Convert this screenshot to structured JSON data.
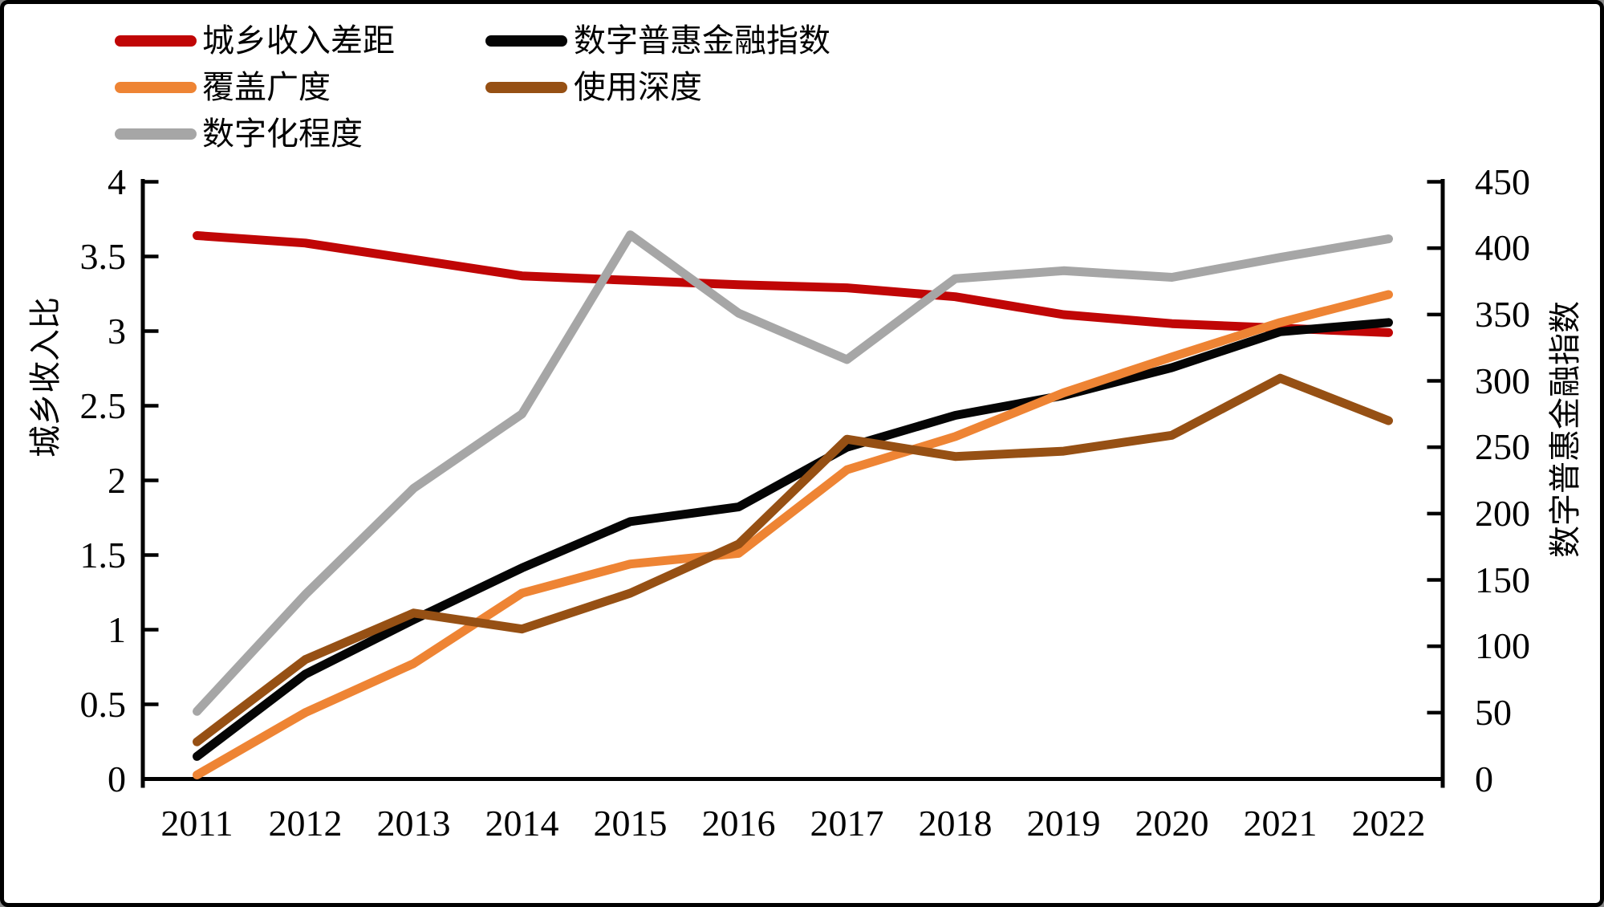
{
  "chart_data": {
    "type": "line",
    "title": "",
    "x_years": [
      "2011",
      "2012",
      "2013",
      "2014",
      "2015",
      "2016",
      "2017",
      "2018",
      "2019",
      "2020",
      "2021",
      "2022"
    ],
    "ylabel_left": "城乡收入比",
    "ylabel_right": "数字普惠金融指数",
    "yaxis_left": {
      "min": 0,
      "max": 4,
      "step": 0.5,
      "tick_labels": [
        "0",
        "0.5",
        "1",
        "1.5",
        "2",
        "2.5",
        "3",
        "3.5",
        "4"
      ]
    },
    "yaxis_right": {
      "min": 0,
      "max": 450,
      "step": 50,
      "tick_labels": [
        "0",
        "50",
        "100",
        "150",
        "200",
        "250",
        "300",
        "350",
        "400",
        "450"
      ]
    },
    "grid": false,
    "legend_position": "top-left",
    "series": [
      {
        "key": "urban-rural-income-gap",
        "name": "城乡收入差距",
        "axis": "left",
        "color": "#C00606",
        "values": [
          3.64,
          3.59,
          3.48,
          3.37,
          3.34,
          3.31,
          3.29,
          3.23,
          3.11,
          3.05,
          3.02,
          2.99
        ]
      },
      {
        "key": "digital-financial-inclusion-index",
        "name": "数字普惠金融指数",
        "axis": "right",
        "color": "#050505",
        "values": [
          17,
          79,
          120,
          159,
          194,
          205,
          250,
          274,
          289,
          310,
          337,
          344
        ]
      },
      {
        "key": "coverage-breadth",
        "name": "覆盖广度",
        "axis": "right",
        "color": "#EE8434",
        "values": [
          3,
          50,
          87,
          140,
          162,
          170,
          233,
          258,
          291,
          318,
          344,
          365
        ]
      },
      {
        "key": "usage-depth",
        "name": "使用深度",
        "axis": "right",
        "color": "#965014",
        "values": [
          28,
          90,
          125,
          113,
          140,
          177,
          256,
          243,
          247,
          259,
          302,
          270
        ]
      },
      {
        "key": "digitalization-level",
        "name": "数字化程度",
        "axis": "right",
        "color": "#A6A6A6",
        "values": [
          51,
          139,
          219,
          275,
          410,
          351,
          316,
          377,
          383,
          378,
          393,
          407
        ]
      }
    ]
  }
}
